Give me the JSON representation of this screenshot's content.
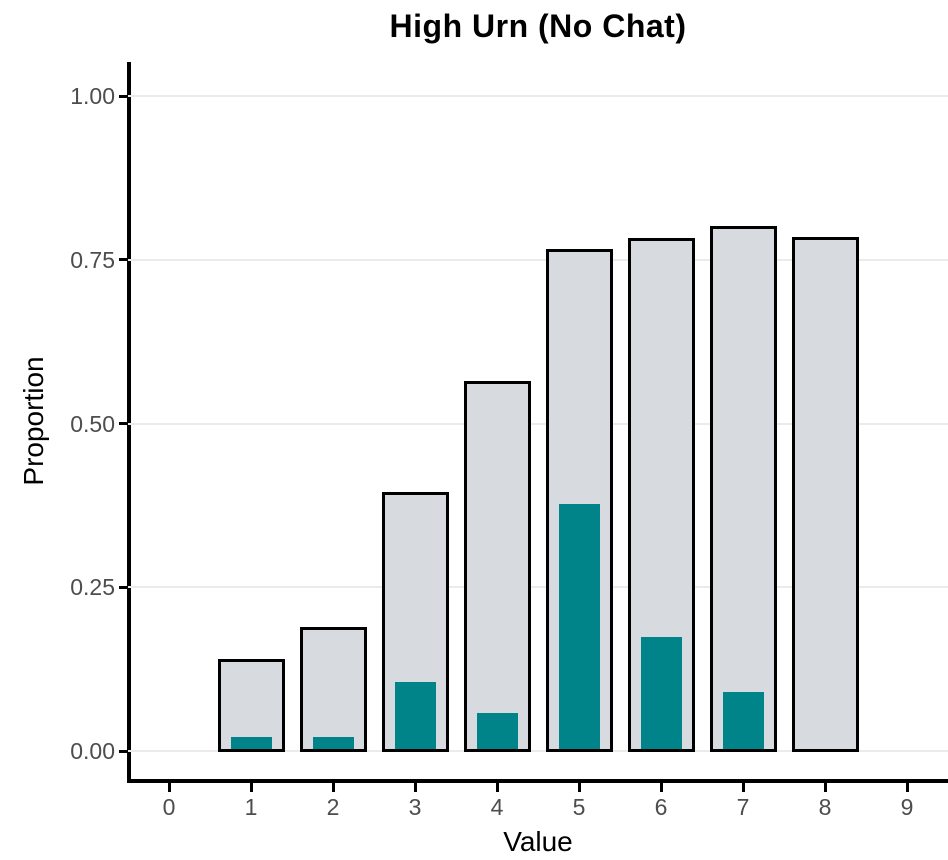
{
  "chart_data": {
    "type": "bar",
    "title": "High Urn (No Chat)",
    "xlabel": "Value",
    "ylabel": "Proportion",
    "categories": [
      "0",
      "1",
      "2",
      "3",
      "4",
      "5",
      "6",
      "7",
      "8",
      "9"
    ],
    "series": [
      {
        "name": "gray-outline-bars",
        "color": "#d7dade",
        "outline": "#000000",
        "values": [
          0,
          0.137,
          0.187,
          0.392,
          0.562,
          0.764,
          0.78,
          0.798,
          0.781,
          0
        ]
      },
      {
        "name": "teal-overlay-bars",
        "color": "#008389",
        "values": [
          0,
          0.018,
          0.018,
          0.103,
          0.055,
          0.374,
          0.171,
          0.087,
          0,
          0
        ]
      }
    ],
    "yticks": [
      {
        "label": "0.00",
        "value": 0
      },
      {
        "label": "0.25",
        "value": 0.25
      },
      {
        "label": "0.50",
        "value": 0.5
      },
      {
        "label": "0.75",
        "value": 0.75
      },
      {
        "label": "1.00",
        "value": 1.0
      }
    ],
    "ylim": [
      0,
      1.05
    ],
    "xlim_categories": 10,
    "grid": "horizontal-only",
    "legend": "none"
  },
  "colors": {
    "background": "#ffffff",
    "axis_line": "#000000",
    "tick_label": "#4d4d4d",
    "axis_title": "#000000",
    "gridline": "#ebebeb",
    "bar_gray": "#d7dade",
    "bar_gray_outline": "#000000",
    "bar_teal": "#008389"
  }
}
